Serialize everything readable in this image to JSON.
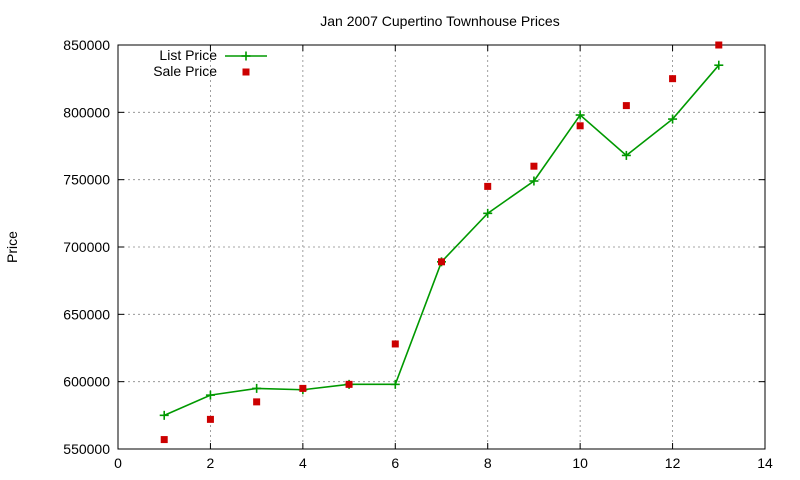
{
  "chart_data": {
    "type": "line",
    "title": "Jan 2007 Cupertino Townhouse Prices",
    "xlabel": "",
    "ylabel": "Price",
    "xlim": [
      0,
      14
    ],
    "ylim": [
      550000,
      850000
    ],
    "x_ticks": [
      0,
      2,
      4,
      6,
      8,
      10,
      12,
      14
    ],
    "y_ticks": [
      550000,
      600000,
      650000,
      700000,
      750000,
      800000,
      850000
    ],
    "grid": true,
    "legend_position": "top-left",
    "series": [
      {
        "name": "List Price",
        "style": "line+cross",
        "color": "#009900",
        "x": [
          1,
          2,
          3,
          4,
          5,
          6,
          7,
          8,
          9,
          10,
          11,
          12,
          13
        ],
        "y": [
          575000,
          590000,
          595000,
          594000,
          598000,
          598000,
          689000,
          725000,
          749000,
          798000,
          768000,
          795000,
          835000
        ]
      },
      {
        "name": "Sale Price",
        "style": "square",
        "color": "#cc0000",
        "x": [
          1,
          2,
          3,
          4,
          5,
          6,
          7,
          8,
          9,
          10,
          11,
          12,
          13
        ],
        "y": [
          557000,
          572000,
          585000,
          595000,
          598000,
          628000,
          689000,
          745000,
          760000,
          790000,
          805000,
          825000,
          850000
        ]
      }
    ]
  }
}
